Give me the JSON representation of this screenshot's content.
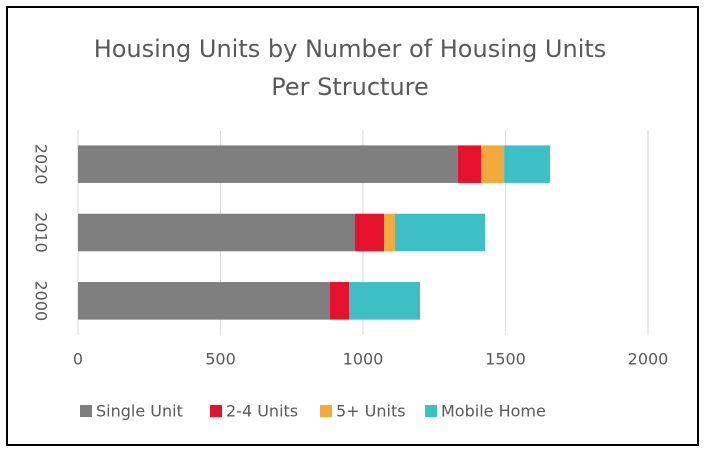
{
  "chart_data": {
    "type": "bar",
    "orientation": "horizontal",
    "stacked": true,
    "title": "Housing Units by  Number of Housing Units Per Structure",
    "categories": [
      "2000",
      "2010",
      "2020"
    ],
    "series": [
      {
        "name": "Single Unit",
        "color": "#7f7f7f",
        "values": [
          884,
          972,
          1333
        ]
      },
      {
        "name": "2-4 Units",
        "color": "#e8112d",
        "values": [
          67,
          102,
          81
        ]
      },
      {
        "name": "5+ Units",
        "color": "#f4a93c",
        "values": [
          0,
          38,
          81
        ]
      },
      {
        "name": "Mobile Home",
        "color": "#3dbfc6",
        "values": [
          249,
          316,
          161
        ]
      }
    ],
    "xlim": [
      0,
      2000
    ],
    "xticks": [
      0,
      500,
      1000,
      1500,
      2000
    ],
    "grid": true,
    "legend": "bottom"
  }
}
